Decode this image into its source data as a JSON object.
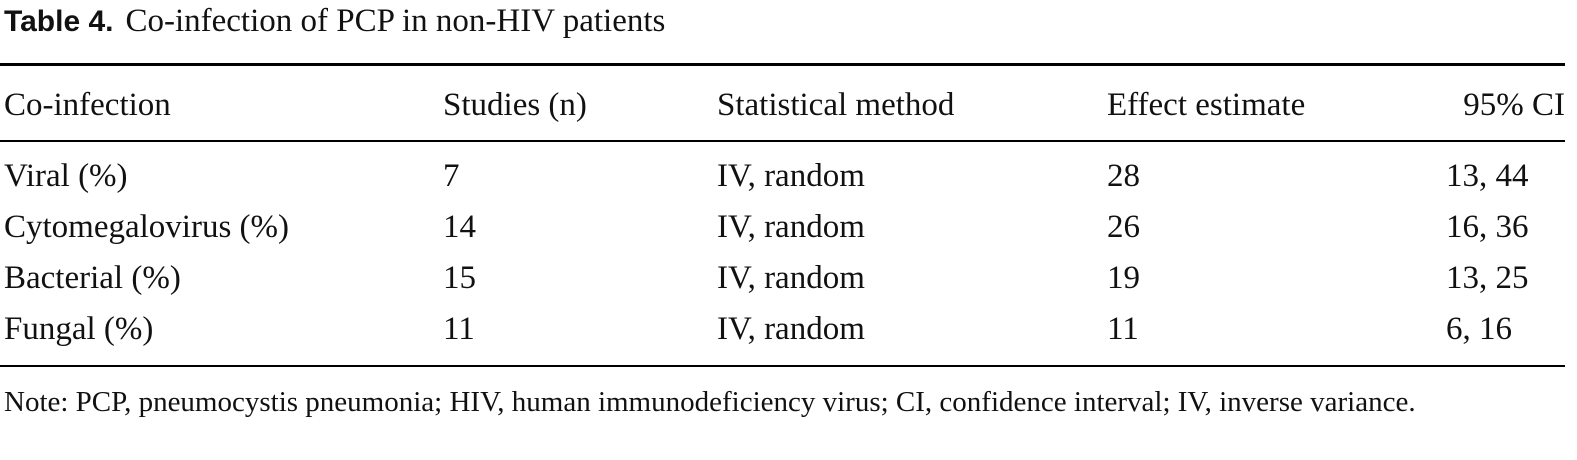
{
  "caption": {
    "label": "Table 4.",
    "text": "Co-infection of PCP in non-HIV patients"
  },
  "table": {
    "headers": [
      "Co-infection",
      "Studies (n)",
      "Statistical method",
      "Effect estimate",
      "95% CI"
    ],
    "rows": [
      [
        "Viral (%)",
        "7",
        "IV, random",
        "28",
        "13, 44"
      ],
      [
        "Cytomegalovirus (%)",
        "14",
        "IV, random",
        "26",
        "16, 36"
      ],
      [
        "Bacterial (%)",
        "15",
        "IV, random",
        "19",
        "13, 25"
      ],
      [
        "Fungal (%)",
        "11",
        "IV, random",
        "11",
        "6, 16"
      ]
    ]
  },
  "note": "Note: PCP, pneumocystis pneumonia; HIV, human immunodeficiency virus; CI, confidence interval; IV, inverse variance."
}
